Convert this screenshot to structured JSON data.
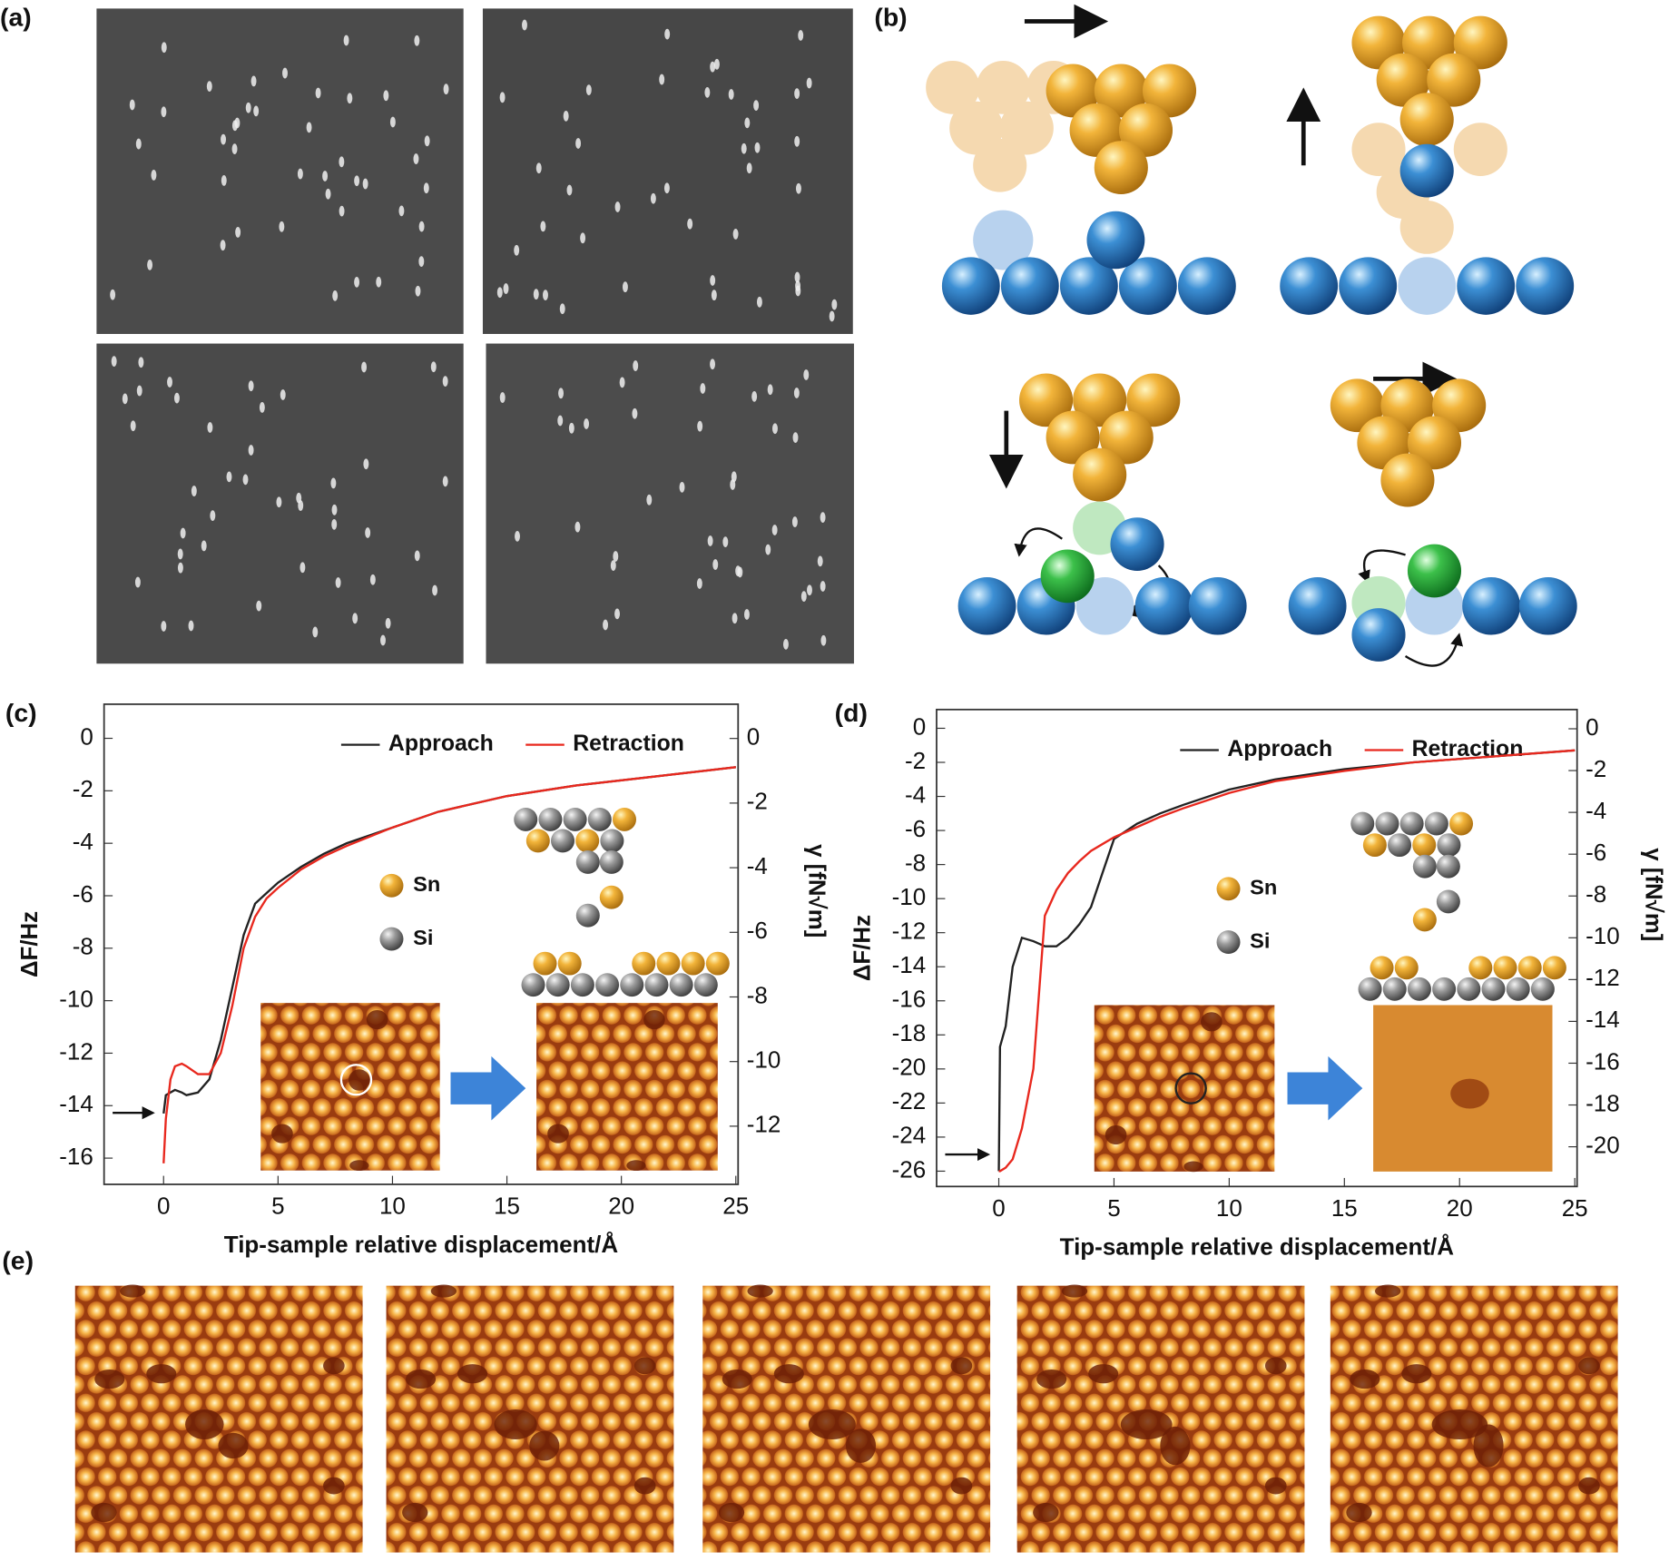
{
  "labels": {
    "a": "(a)",
    "b": "(b)",
    "e": "(e)"
  },
  "chart_data": [
    {
      "type": "line",
      "panel_label": "(c)",
      "xlabel": "Tip-sample relative displacement/Å",
      "ylabel": "ΔF/Hz",
      "y2label": "γ [fN√m]",
      "legend": "top-right",
      "annotations": [
        "Sn",
        "Si"
      ],
      "x": [
        0,
        0.1,
        0.3,
        0.5,
        0.8,
        1,
        1.5,
        2,
        2.5,
        3,
        3.5,
        4,
        4.5,
        5,
        6,
        7,
        8,
        10,
        12,
        15,
        18,
        21,
        25
      ],
      "series": [
        {
          "name": "Approach",
          "color": "#222222",
          "values": [
            -14.3,
            -13.6,
            -13.5,
            -13.4,
            -13.5,
            -13.6,
            -13.5,
            -13.0,
            -11.5,
            -9.5,
            -7.5,
            -6.3,
            -5.9,
            -5.5,
            -4.9,
            -4.4,
            -4.0,
            -3.4,
            -2.8,
            -2.2,
            -1.8,
            -1.5,
            -1.1
          ]
        },
        {
          "name": "Retraction",
          "color": "#e8281e",
          "values": [
            -16.2,
            -14.5,
            -13.0,
            -12.5,
            -12.4,
            -12.5,
            -12.8,
            -12.8,
            -12.0,
            -10.2,
            -8.0,
            -6.8,
            -6.1,
            -5.7,
            -5.0,
            -4.5,
            -4.1,
            -3.4,
            -2.8,
            -2.2,
            -1.8,
            -1.5,
            -1.1
          ]
        }
      ],
      "xlim": [
        -2.6,
        25.1
      ],
      "xticks": [
        0,
        5,
        10,
        15,
        20,
        25
      ],
      "ylim": [
        -17,
        1.3
      ],
      "yticks": [
        0,
        -2,
        -4,
        -6,
        -8,
        -10,
        -12,
        -14,
        -16
      ],
      "y2lim": [
        -13.8,
        1.06
      ],
      "y2ticks": [
        0,
        -2,
        -4,
        -6,
        -8,
        -10,
        -12
      ]
    },
    {
      "type": "line",
      "panel_label": "(d)",
      "xlabel": "Tip-sample relative displacement/Å",
      "ylabel": "ΔF/Hz",
      "y2label": "γ [fN√m]",
      "legend": "top-right",
      "annotations": [
        "Sn",
        "Si"
      ],
      "x": [
        0,
        0.05,
        0.3,
        0.6,
        1,
        1.5,
        2,
        2.5,
        3,
        3.5,
        4,
        4.5,
        5,
        6,
        7,
        8,
        10,
        12,
        15,
        18,
        21,
        25
      ],
      "series": [
        {
          "name": "Approach",
          "color": "#222222",
          "values": [
            -26,
            -18.7,
            -17.5,
            -14,
            -12.3,
            -12.5,
            -12.8,
            -12.8,
            -12.3,
            -11.5,
            -10.5,
            -8.5,
            -6.5,
            -5.6,
            -5.0,
            -4.5,
            -3.6,
            -3.0,
            -2.4,
            -2.0,
            -1.7,
            -1.3
          ]
        },
        {
          "name": "Retraction",
          "color": "#e8281e",
          "values": [
            -26,
            -26,
            -25.8,
            -25.3,
            -23.5,
            -20,
            -11,
            -9.5,
            -8.5,
            -7.8,
            -7.2,
            -6.8,
            -6.4,
            -5.8,
            -5.2,
            -4.7,
            -3.8,
            -3.1,
            -2.5,
            -2.0,
            -1.7,
            -1.3
          ]
        }
      ],
      "xlim": [
        -2.7,
        25.1
      ],
      "xticks": [
        0,
        5,
        10,
        15,
        20,
        25
      ],
      "ylim": [
        -26.9,
        1.1
      ],
      "yticks": [
        0,
        -2,
        -4,
        -6,
        -8,
        -10,
        -12,
        -14,
        -16,
        -18,
        -20,
        -22,
        -24,
        -26
      ],
      "y2lim": [
        -21.9,
        0.92
      ],
      "y2ticks": [
        0,
        -2,
        -4,
        -6,
        -8,
        -10,
        -12,
        -14,
        -16,
        -18,
        -20
      ]
    }
  ]
}
